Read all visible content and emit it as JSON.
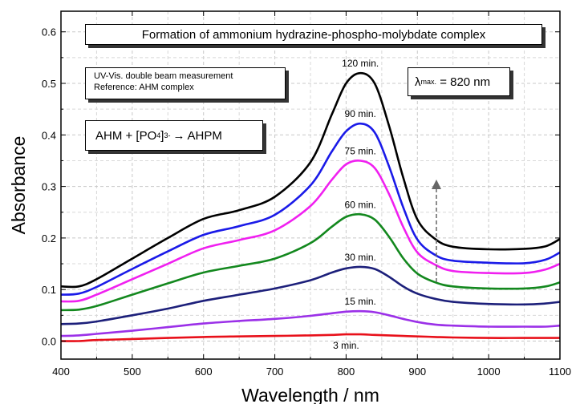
{
  "chart_data": {
    "type": "line",
    "title": "Formation of ammonium hydrazine-phospho-molybdate complex",
    "xlabel": "Wavelength / nm",
    "ylabel": "Absorbance",
    "xlim": [
      400,
      1100
    ],
    "ylim": [
      -0.035,
      0.64
    ],
    "xticks": [
      "400",
      "500",
      "600",
      "700",
      "800",
      "900",
      "1000",
      "1100"
    ],
    "yticks": [
      "0.0",
      "0.1",
      "0.2",
      "0.3",
      "0.4",
      "0.5",
      "0.6"
    ],
    "grid": true,
    "x": [
      400,
      425,
      450,
      500,
      550,
      600,
      650,
      700,
      750,
      780,
      800,
      820,
      840,
      860,
      880,
      900,
      925,
      950,
      1000,
      1050,
      1080,
      1100
    ],
    "series": [
      {
        "name": "3 min.",
        "color": "#e8101a",
        "values": [
          0.0,
          0.0,
          0.002,
          0.004,
          0.006,
          0.008,
          0.009,
          0.01,
          0.011,
          0.012,
          0.013,
          0.013,
          0.012,
          0.011,
          0.01,
          0.009,
          0.008,
          0.007,
          0.006,
          0.006,
          0.006,
          0.006
        ]
      },
      {
        "name": "15 min.",
        "color": "#9b30e8",
        "values": [
          0.01,
          0.011,
          0.014,
          0.02,
          0.027,
          0.034,
          0.039,
          0.043,
          0.049,
          0.054,
          0.057,
          0.058,
          0.056,
          0.05,
          0.043,
          0.037,
          0.032,
          0.03,
          0.028,
          0.028,
          0.028,
          0.03
        ]
      },
      {
        "name": "30 min.",
        "color": "#1c1f7a",
        "values": [
          0.033,
          0.034,
          0.038,
          0.05,
          0.063,
          0.078,
          0.09,
          0.102,
          0.118,
          0.133,
          0.141,
          0.144,
          0.14,
          0.125,
          0.106,
          0.092,
          0.082,
          0.076,
          0.072,
          0.071,
          0.073,
          0.076
        ]
      },
      {
        "name": "60 min.",
        "color": "#13881e",
        "values": [
          0.06,
          0.061,
          0.068,
          0.09,
          0.112,
          0.133,
          0.146,
          0.16,
          0.19,
          0.222,
          0.241,
          0.246,
          0.236,
          0.203,
          0.161,
          0.131,
          0.114,
          0.106,
          0.102,
          0.102,
          0.106,
          0.114
        ]
      },
      {
        "name": "75 min.",
        "color": "#f020f0",
        "values": [
          0.077,
          0.078,
          0.09,
          0.12,
          0.15,
          0.18,
          0.196,
          0.215,
          0.262,
          0.313,
          0.343,
          0.35,
          0.336,
          0.286,
          0.222,
          0.172,
          0.148,
          0.136,
          0.132,
          0.132,
          0.139,
          0.15
        ]
      },
      {
        "name": "90 min.",
        "color": "#1a1ae8",
        "values": [
          0.09,
          0.092,
          0.105,
          0.14,
          0.174,
          0.206,
          0.223,
          0.245,
          0.302,
          0.368,
          0.407,
          0.422,
          0.405,
          0.34,
          0.26,
          0.197,
          0.167,
          0.156,
          0.152,
          0.151,
          0.158,
          0.172
        ]
      },
      {
        "name": "120 min.",
        "color": "#000000",
        "values": [
          0.106,
          0.106,
          0.12,
          0.16,
          0.2,
          0.237,
          0.254,
          0.28,
          0.347,
          0.44,
          0.5,
          0.52,
          0.5,
          0.419,
          0.318,
          0.236,
          0.198,
          0.183,
          0.178,
          0.179,
          0.184,
          0.198
        ]
      }
    ],
    "annotations": {
      "method_line1": "UV-Vis. double beam measurement",
      "method_line2": "Reference: AHM complex",
      "reaction_left": "AHM + [PO",
      "reaction_sub": "4",
      "reaction_sup": "3-",
      "reaction_right": "AHPM",
      "lambda_symbol": "λ",
      "lambda_sub": "max.",
      "lambda_value": "= 820 nm"
    }
  }
}
